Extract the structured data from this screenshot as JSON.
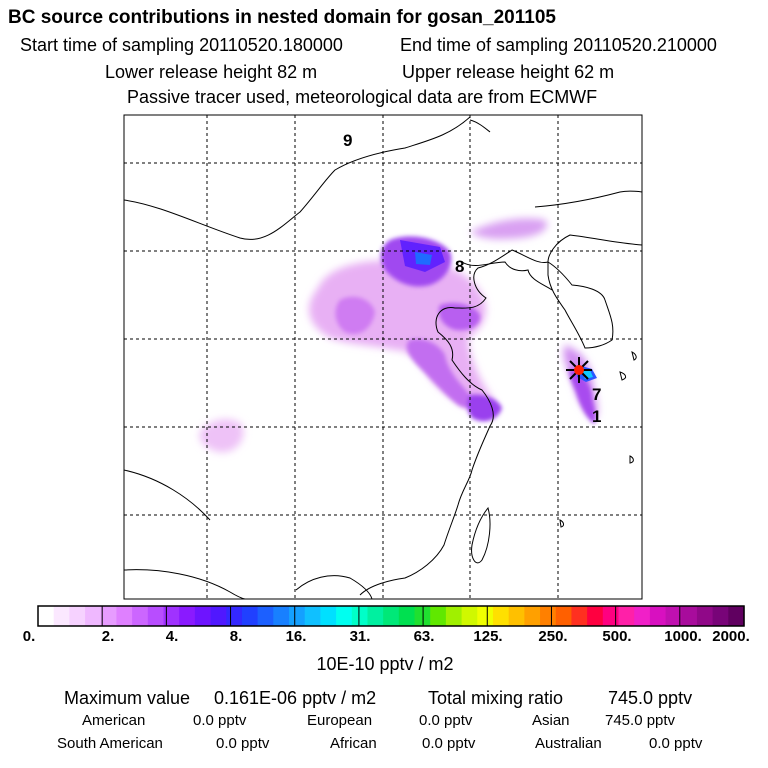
{
  "header": {
    "title": "BC  source contributions in nested domain for gosan_201105",
    "start_label": "Start time of sampling 20110520.180000",
    "end_label": "End time of sampling 20110520.210000",
    "lower_label": "Lower release height   82 m",
    "upper_label": "Upper release height   62 m",
    "note": "Passive tracer used, meteorological data are from ECMWF"
  },
  "map": {
    "markers": [
      "9",
      "8",
      "7",
      "1"
    ]
  },
  "colorbar": {
    "labels": [
      "0.",
      "2.",
      "4.",
      "8.",
      "16.",
      "31.",
      "63.",
      "125.",
      "250.",
      "500.",
      "1000.",
      "2000."
    ],
    "colors": [
      "#ffffff",
      "#fbe8ff",
      "#f6d2ff",
      "#efb8ff",
      "#e79cff",
      "#df80ff",
      "#cc66ff",
      "#b84dff",
      "#a032ff",
      "#8a1aff",
      "#6e14ff",
      "#5018ff",
      "#3428ff",
      "#2040ff",
      "#1c60ff",
      "#1880ff",
      "#14a0ff",
      "#10c0ff",
      "#00e0ff",
      "#00fff0",
      "#00ffc8",
      "#00f0a0",
      "#00e878",
      "#00e050",
      "#20e030",
      "#60e800",
      "#a0f000",
      "#d0f800",
      "#f0ff00",
      "#ffe000",
      "#ffc000",
      "#ffa000",
      "#ff8000",
      "#ff6000",
      "#ff3020",
      "#ff0040",
      "#ff0080",
      "#ff20a8",
      "#f020c8",
      "#d810c0",
      "#c010b0",
      "#a80c9c",
      "#900888",
      "#780478",
      "#600060"
    ],
    "units": "10E-10 pptv / m2"
  },
  "stats": {
    "max_label": "Maximum value",
    "max_value": "0.161E-06 pptv / m2",
    "total_label": "Total mixing ratio",
    "total_value": "745.0 pptv",
    "american_label": "American",
    "american_value": "0.0 pptv",
    "european_label": "European",
    "european_value": "0.0 pptv",
    "asian_label": "Asian",
    "asian_value": "745.0 pptv",
    "south_american_label": "South American",
    "south_american_value": "0.0 pptv",
    "african_label": "African",
    "african_value": "0.0 pptv",
    "australian_label": "Australian",
    "australian_value": "0.0 pptv"
  }
}
